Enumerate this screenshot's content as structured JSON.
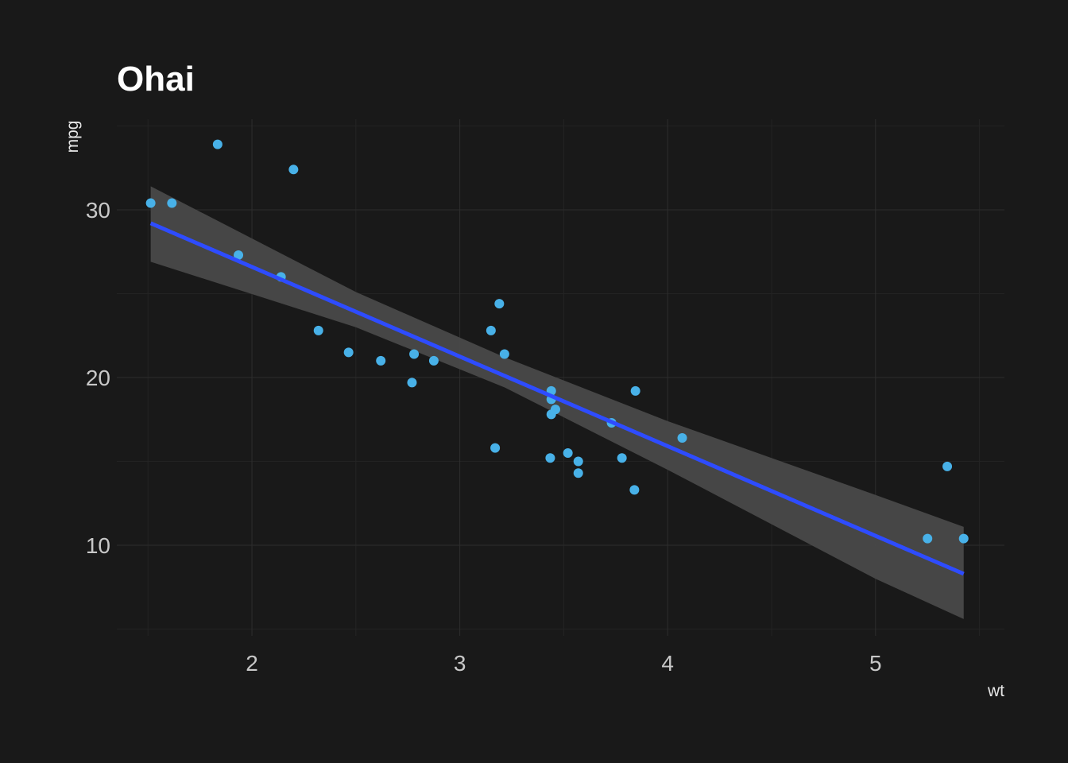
{
  "colors": {
    "background": "#191919",
    "grid_major": "#2d2d2d",
    "grid_minor": "#232323",
    "point": "#48b1e8",
    "fit_line": "#2e4cff",
    "confidence_band": "#4a4a4a",
    "title": "#ffffff",
    "tick_text": "#c8c8c8",
    "axis_text": "#e6e6e6"
  },
  "chart_data": {
    "type": "scatter",
    "title": "Ohai",
    "xlabel": "wt",
    "ylabel": "mpg",
    "xlim": [
      1.35,
      5.62
    ],
    "ylim": [
      4.6,
      35.4
    ],
    "x_ticks": [
      2,
      3,
      4,
      5
    ],
    "y_ticks": [
      10,
      20,
      30
    ],
    "grid": true,
    "legend": "none",
    "points": [
      {
        "x": 2.62,
        "y": 21.0
      },
      {
        "x": 2.875,
        "y": 21.0
      },
      {
        "x": 2.32,
        "y": 22.8
      },
      {
        "x": 3.215,
        "y": 21.4
      },
      {
        "x": 3.44,
        "y": 18.7
      },
      {
        "x": 3.46,
        "y": 18.1
      },
      {
        "x": 3.57,
        "y": 14.3
      },
      {
        "x": 3.19,
        "y": 24.4
      },
      {
        "x": 3.15,
        "y": 22.8
      },
      {
        "x": 3.44,
        "y": 19.2
      },
      {
        "x": 3.44,
        "y": 17.8
      },
      {
        "x": 4.07,
        "y": 16.4
      },
      {
        "x": 3.73,
        "y": 17.3
      },
      {
        "x": 3.78,
        "y": 15.2
      },
      {
        "x": 5.25,
        "y": 10.4
      },
      {
        "x": 5.424,
        "y": 10.4
      },
      {
        "x": 5.345,
        "y": 14.7
      },
      {
        "x": 2.2,
        "y": 32.4
      },
      {
        "x": 1.615,
        "y": 30.4
      },
      {
        "x": 1.835,
        "y": 33.9
      },
      {
        "x": 2.465,
        "y": 21.5
      },
      {
        "x": 3.52,
        "y": 15.5
      },
      {
        "x": 3.435,
        "y": 15.2
      },
      {
        "x": 3.84,
        "y": 13.3
      },
      {
        "x": 3.845,
        "y": 19.2
      },
      {
        "x": 1.935,
        "y": 27.3
      },
      {
        "x": 2.14,
        "y": 26.0
      },
      {
        "x": 1.513,
        "y": 30.4
      },
      {
        "x": 3.17,
        "y": 15.8
      },
      {
        "x": 2.77,
        "y": 19.7
      },
      {
        "x": 3.57,
        "y": 15.0
      },
      {
        "x": 2.78,
        "y": 21.4
      }
    ],
    "fit": {
      "method": "linear",
      "intercept": 37.2851,
      "slope": -5.3445,
      "band_upper": [
        {
          "x": 1.513,
          "y": 31.4
        },
        {
          "x": 2.5,
          "y": 25.1
        },
        {
          "x": 3.217,
          "y": 21.2
        },
        {
          "x": 4.0,
          "y": 17.4
        },
        {
          "x": 5.0,
          "y": 13.0
        },
        {
          "x": 5.424,
          "y": 11.1
        }
      ],
      "band_lower": [
        {
          "x": 1.513,
          "y": 26.9
        },
        {
          "x": 2.5,
          "y": 23.0
        },
        {
          "x": 3.217,
          "y": 19.4
        },
        {
          "x": 4.0,
          "y": 14.5
        },
        {
          "x": 5.0,
          "y": 8.0
        },
        {
          "x": 5.424,
          "y": 5.6
        }
      ]
    }
  }
}
